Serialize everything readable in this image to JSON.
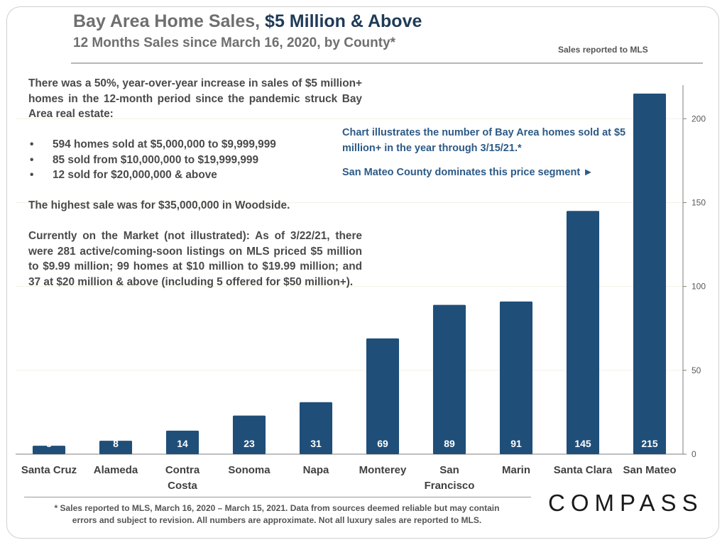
{
  "header": {
    "title_main": "Bay Area Home Sales, ",
    "title_accent": "$5 Million & Above",
    "subtitle": "12 Months Sales since March 16, 2020, by County*",
    "source_note": "Sales reported to MLS"
  },
  "narrative": {
    "intro": "There was a 50%, year-over-year increase in sales of $5 million+ homes in the 12-month period since the pandemic struck Bay Area real estate:",
    "bullets": [
      "594 homes sold at $5,000,000 to $9,999,999",
      "85 sold from $10,000,000 to $19,999,999",
      "12 sold for $20,000,000 & above"
    ],
    "bullet_glyph": "•",
    "highest_sale": "The highest sale was for $35,000,000 in Woodside.",
    "market": "Currently on the Market (not illustrated): As of 3/22/21, there were 281 active/coming-soon listings on MLS priced $5 million to $9.99 million; 99 homes at $10 million to $19.99 million; and 37 at $20 million & above (including 5 offered for $50 million+)."
  },
  "callout": {
    "line1": "Chart illustrates the number of Bay Area homes sold at $5 million+ in the year through 3/15/21.*",
    "line2": "San Mateo County dominates this price segment ►"
  },
  "footer": {
    "line1": "* Sales reported to MLS, March 16, 2020 – March 15, 2021. Data from sources deemed reliable but may contain",
    "line2": "errors and subject to revision.  All numbers are approximate. Not all luxury sales are reported to MLS."
  },
  "logo": {
    "text": "COMPASS"
  },
  "colors": {
    "bar": "#1f4e79",
    "bar_label": "#ffffff",
    "axis": "#7f7f7f",
    "tick_label": "#595959",
    "grid": "#f3f0e6",
    "category_label": "#404040"
  },
  "chart_data": {
    "type": "bar",
    "categories": [
      [
        "Santa Cruz"
      ],
      [
        "Alameda"
      ],
      [
        "Contra",
        "Costa"
      ],
      [
        "Sonoma"
      ],
      [
        "Napa"
      ],
      [
        "Monterey"
      ],
      [
        "San",
        "Francisco"
      ],
      [
        "Marin"
      ],
      [
        "Santa Clara"
      ],
      [
        "San Mateo"
      ]
    ],
    "values": [
      5,
      8,
      14,
      23,
      31,
      69,
      89,
      91,
      145,
      215
    ],
    "ylim": [
      0,
      220
    ],
    "yticks": [
      0,
      50,
      100,
      150,
      200
    ],
    "yaxis_side": "right",
    "grid": true,
    "data_labels": true
  }
}
